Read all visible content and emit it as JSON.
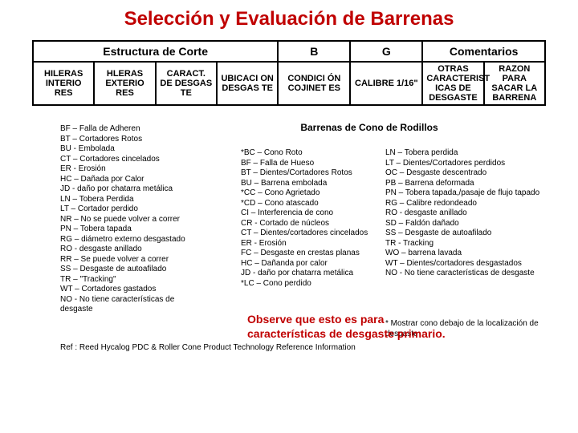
{
  "colors": {
    "title": "#c00000",
    "note": "#c00000",
    "text": "#000000",
    "border": "#000000",
    "background": "#ffffff"
  },
  "title": "Selección y Evaluación de Barrenas",
  "table": {
    "header": {
      "c1": "Estructura de Corte",
      "c2": "B",
      "c3": "G",
      "c4": "Comentarios"
    },
    "row2": {
      "a": "HILERAS INTERIO RES",
      "b": "HLERAS EXTERIO RES",
      "c": "CARACT. DE DESGAS TE",
      "d": "UBICACI ON DESGAS TE",
      "e": "CONDICI ÓN COJINET ES",
      "f": "CALIBRE 1/16\"",
      "g": "OTRAS CARACTERIST ICAS DE DESGASTE",
      "h": "RAZON PARA SACAR LA BARRENA"
    }
  },
  "subheader": "Barrenas de Cono de Rodillos",
  "leftList": [
    "BF – Falla de Adheren",
    "BT – Cortadores Rotos",
    "BU - Embolada",
    "CT – Cortadores cincelados",
    "ER - Erosión",
    "HC – Dañada por Calor",
    "JD - daño por chatarra metálica",
    "LN – Tobera Perdida",
    "LT – Cortador perdido",
    "NR – No se puede volver a correr",
    "PN – Tobera tapada",
    "RG – diámetro externo desgastado",
    "RO - desgaste anillado",
    "RR – Se puede volver a correr",
    "SS – Desgaste de autoafilado",
    "TR – \"Tracking\"",
    "WT – Cortadores gastados",
    "NO - No tiene características de desgaste"
  ],
  "midList": [
    "*BC – Cono Roto",
    "BF – Falla de Hueso",
    "BT – Dientes/Cortadores Rotos",
    "BU – Barrena embolada",
    "*CC – Cono Agrietado",
    "*CD – Cono atascado",
    "CI – Interferencia de cono",
    "CR - Cortado de núcleos",
    "CT – Dientes/cortadores cincelados",
    "ER - Erosión",
    "FC – Desgaste en crestas planas",
    "HC – Dañanda por calor",
    "JD - daño por chatarra metálica",
    "*LC – Cono perdido"
  ],
  "rightList": [
    "LN – Tobera perdida",
    "LT – Dientes/Cortadores perdidos",
    "OC – Desgaste descentrado",
    "PB – Barrena deformada",
    "PN – Tobera tapada,/pasaje de flujo tapado",
    "RG – Calibre redondeado",
    "RO - desgaste anillado",
    "SD – Faldón dañado",
    "SS – Desgaste de autoafilado",
    "TR -  Tracking",
    "WO – barrena lavada",
    "WT – Dientes/cortadores desgastados",
    "NO - No tiene características de desgaste"
  ],
  "rightExtra": "* Mostrar cono debajo de la localización de desgaste",
  "note_line1": "Observe que esto es para",
  "note_line2": "características de desgaste primario.",
  "reference": "Ref : Reed Hycalog PDC & Roller Cone Product Technology Reference Information"
}
